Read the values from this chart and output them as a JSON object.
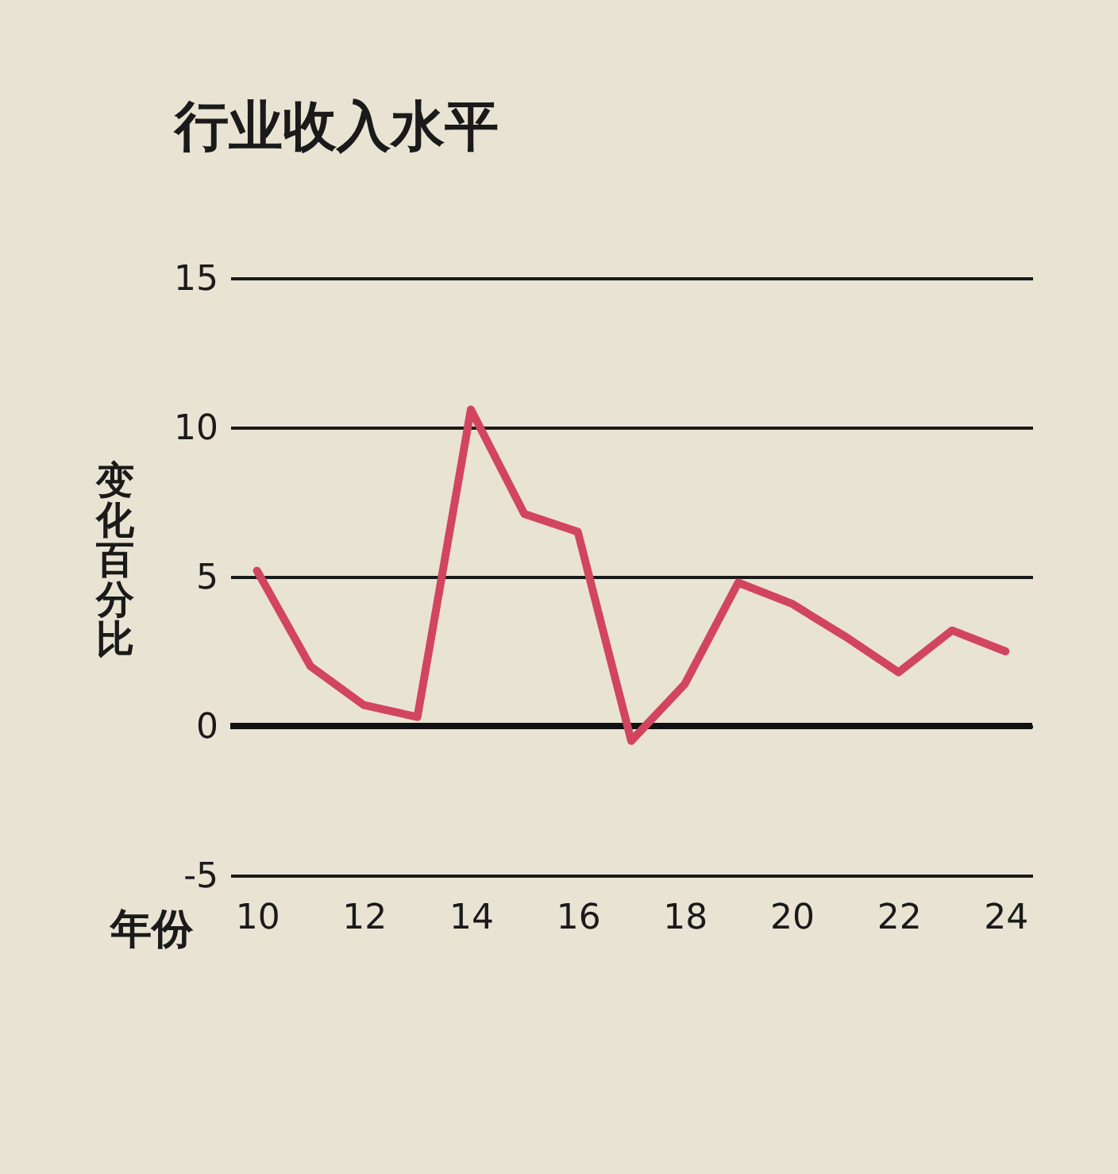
{
  "chart_data": {
    "type": "line",
    "title": "行业收入水平",
    "xlabel": "年份",
    "ylabel": "变化百分比",
    "x": [
      10,
      11,
      12,
      13,
      14,
      15,
      16,
      17,
      18,
      19,
      20,
      21,
      22,
      23,
      24
    ],
    "series": [
      {
        "color": "#d2455f",
        "values": [
          5.2,
          2.0,
          0.7,
          0.3,
          10.6,
          7.1,
          6.5,
          -0.5,
          1.4,
          4.8,
          4.1,
          3.0,
          1.8,
          3.2,
          2.5
        ]
      }
    ],
    "xlim": [
      9.5,
      24.5
    ],
    "xticks": [
      10,
      12,
      14,
      16,
      18,
      20,
      22,
      24
    ],
    "ylim": [
      -5,
      15
    ],
    "yticks": [
      -5,
      0,
      5,
      10,
      15
    ],
    "grid": "y",
    "line_style": "solid",
    "ref_lines": [
      {
        "axis": "y",
        "value": 0,
        "color": "#111111"
      }
    ]
  }
}
